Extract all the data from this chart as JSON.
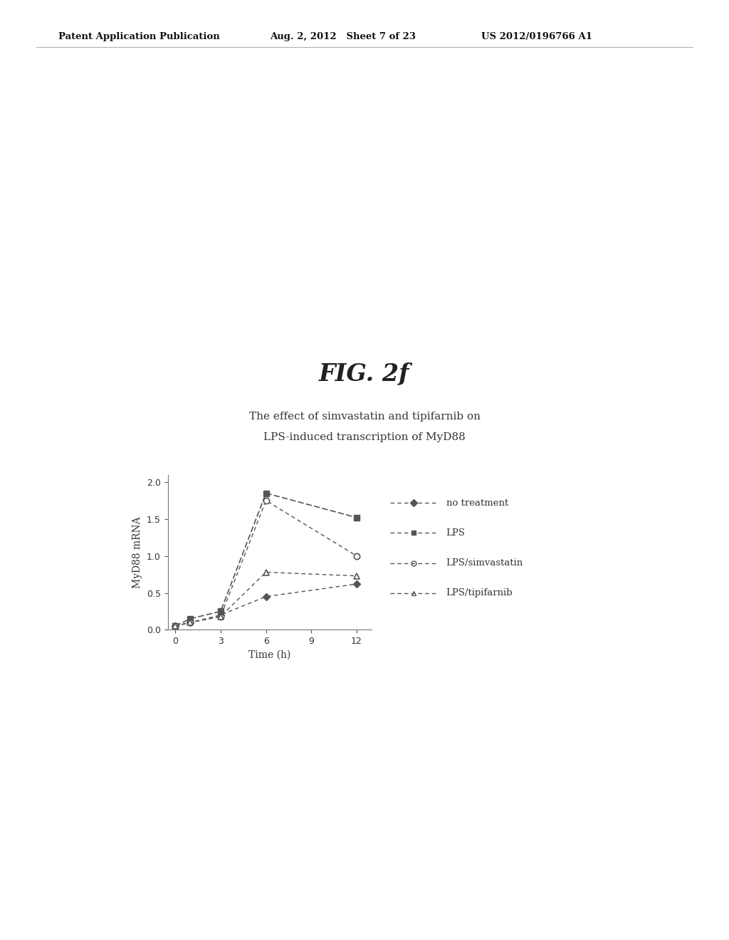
{
  "fig_label": "FIG. 2f",
  "title_line1": "The effect of simvastatin and tipifarnib on",
  "title_line2": "LPS-induced transcription of MyD88",
  "xlabel": "Time (h)",
  "ylabel": "MyD88 mRNA",
  "header_left": "Patent Application Publication",
  "header_mid": "Aug. 2, 2012   Sheet 7 of 23",
  "header_right": "US 2012/0196766 A1",
  "x_values": [
    0,
    1,
    3,
    6,
    12
  ],
  "no_treatment": [
    0.05,
    0.1,
    0.2,
    0.45,
    0.62
  ],
  "lps": [
    0.05,
    0.15,
    0.25,
    1.85,
    1.52
  ],
  "lps_simvastatin": [
    0.05,
    0.1,
    0.18,
    1.75,
    1.0
  ],
  "lps_tipifarnib": [
    0.05,
    0.1,
    0.18,
    0.78,
    0.73
  ],
  "xlim": [
    -0.5,
    13
  ],
  "ylim": [
    0,
    2.1
  ],
  "yticks": [
    0,
    0.5,
    1,
    1.5,
    2
  ],
  "xticks": [
    0,
    3,
    6,
    9,
    12
  ],
  "color": "#555555",
  "background": "#ffffff"
}
